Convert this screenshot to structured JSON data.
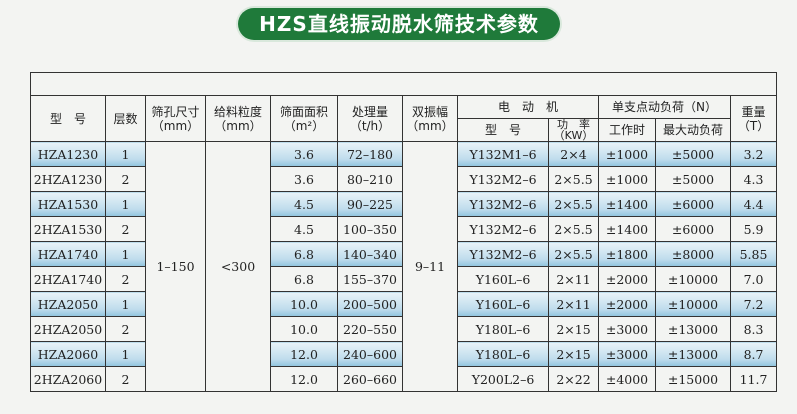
{
  "title": "HZS直线振动脱水筛技术参数",
  "headers": {
    "model": "型　号",
    "layers": "层数",
    "aperture": "筛孔尺寸",
    "aperture_unit": "（mm）",
    "feed": "给料粒度",
    "feed_unit": "（mm）",
    "area": "筛面面积",
    "area_unit": "（m²）",
    "capacity": "处理量",
    "capacity_unit": "（t/h）",
    "amplitude": "双振幅",
    "amplitude_unit": "（mm）",
    "motor": "电　动　机",
    "motor_model": "型　号",
    "motor_power": "功　率",
    "motor_power_unit": "（KW）",
    "load": "单支点动负荷（N）",
    "load_work": "工作时",
    "load_max": "最大动负荷",
    "weight": "重量",
    "weight_unit": "（T）"
  },
  "merged": {
    "aperture": "1–150",
    "feed": "<300",
    "amplitude": "9–11"
  },
  "highlight_color": "#bfdcec",
  "rows": [
    {
      "model": "HZA1230",
      "layers": "1",
      "area": "3.6",
      "capacity": "72–180",
      "motor": "Y132M1–6",
      "power": "2×4",
      "work": "±1000",
      "max": "±5000",
      "weight": "3.2"
    },
    {
      "model": "2HZA1230",
      "layers": "2",
      "area": "3.6",
      "capacity": "80–210",
      "motor": "Y132M2–6",
      "power": "2×5.5",
      "work": "±1000",
      "max": "±5000",
      "weight": "4.3"
    },
    {
      "model": "HZA1530",
      "layers": "1",
      "area": "4.5",
      "capacity": "90–225",
      "motor": "Y132M2–6",
      "power": "2×5.5",
      "work": "±1400",
      "max": "±6000",
      "weight": "4.4"
    },
    {
      "model": "2HZA1530",
      "layers": "2",
      "area": "4.5",
      "capacity": "100–350",
      "motor": "Y132M2–6",
      "power": "2×5.5",
      "work": "±1400",
      "max": "±6000",
      "weight": "5.9"
    },
    {
      "model": "HZA1740",
      "layers": "1",
      "area": "6.8",
      "capacity": "140–340",
      "motor": "Y132M2–6",
      "power": "2×5.5",
      "work": "±1800",
      "max": "±8000",
      "weight": "5.85"
    },
    {
      "model": "2HZA1740",
      "layers": "2",
      "area": "6.8",
      "capacity": "155–370",
      "motor": "Y160L–6",
      "power": "2×11",
      "work": "±2000",
      "max": "±10000",
      "weight": "7.0"
    },
    {
      "model": "HZA2050",
      "layers": "1",
      "area": "10.0",
      "capacity": "200–500",
      "motor": "Y160L–6",
      "power": "2×11",
      "work": "±2000",
      "max": "±10000",
      "weight": "7.2"
    },
    {
      "model": "2HZA2050",
      "layers": "2",
      "area": "10.0",
      "capacity": "220–550",
      "motor": "Y180L–6",
      "power": "2×15",
      "work": "±3000",
      "max": "±13000",
      "weight": "8.3"
    },
    {
      "model": "HZA2060",
      "layers": "1",
      "area": "12.0",
      "capacity": "240–600",
      "motor": "Y180L–6",
      "power": "2×15",
      "work": "±3000",
      "max": "±13000",
      "weight": "8.7"
    },
    {
      "model": "2HZA2060",
      "layers": "2",
      "area": "12.0",
      "capacity": "260–660",
      "motor": "Y200L2–6",
      "power": "2×22",
      "work": "±4000",
      "max": "±15000",
      "weight": "11.7"
    }
  ]
}
